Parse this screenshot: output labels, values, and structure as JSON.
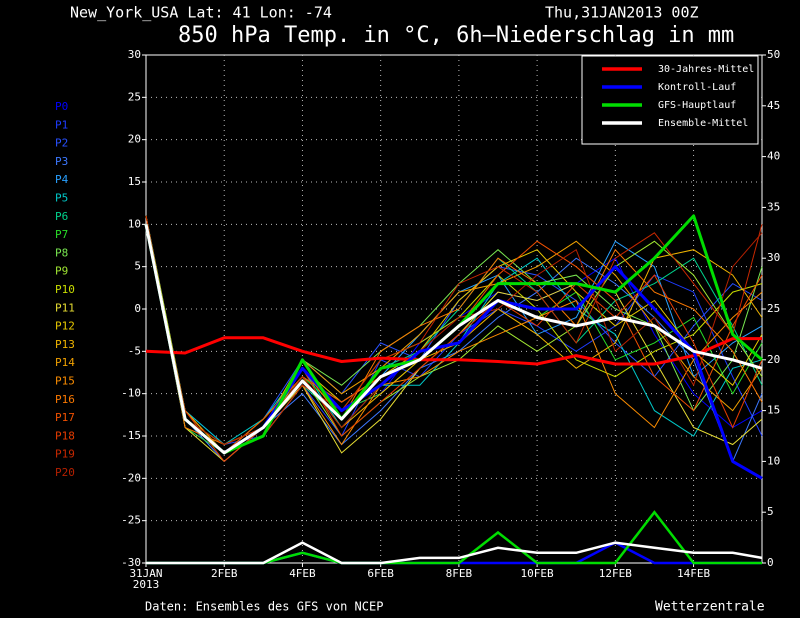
{
  "chart_data": {
    "type": "line",
    "header_left": "New_York_USA  Lat: 41 Lon: -74",
    "header_right": "Thu,31JAN2013 00Z",
    "title": "850 hPa Temp. in °C, 6h–Niederschlag in mm",
    "footer_left": "Daten: Ensembles des GFS von NCEP",
    "footer_right": "Wetterzentrale",
    "x": [
      0,
      1,
      2,
      3,
      4,
      5,
      6,
      7,
      8,
      9,
      10,
      11,
      12,
      13,
      14,
      15,
      15.75
    ],
    "xlim": [
      0,
      15.75
    ],
    "xticks": [
      {
        "value": 0,
        "label": "31JAN"
      },
      {
        "value": 2,
        "label": "2FEB"
      },
      {
        "value": 4,
        "label": "4FEB"
      },
      {
        "value": 6,
        "label": "6FEB"
      },
      {
        "value": 8,
        "label": "8FEB"
      },
      {
        "value": 10,
        "label": "10FEB"
      },
      {
        "value": 12,
        "label": "12FEB"
      },
      {
        "value": 14,
        "label": "14FEB"
      }
    ],
    "x_year_label": "2013",
    "ylim": [
      -30,
      30
    ],
    "yticks": [
      -30,
      -25,
      -20,
      -15,
      -10,
      -5,
      0,
      5,
      10,
      15,
      20,
      25,
      30
    ],
    "y2lim": [
      0,
      50
    ],
    "y2ticks": [
      0,
      5,
      10,
      15,
      20,
      25,
      30,
      35,
      40,
      45,
      50
    ],
    "grid": true,
    "legend": "upper right",
    "series": [
      {
        "name": "30-Jahres-Mittel",
        "color": "#ff0000",
        "values": [
          -5,
          -5.2,
          -3.4,
          -3.4,
          -5,
          -6.2,
          -5.8,
          -6,
          -6,
          -6.2,
          -6.5,
          -5.5,
          -6.5,
          -6.5,
          -5.5,
          -3.5,
          -3.5
        ]
      },
      {
        "name": "Kontroll-Lauf",
        "color": "#0000ff",
        "values": [
          10,
          -13,
          -17,
          -14,
          -7,
          -12,
          -9,
          -5,
          -4,
          1,
          0,
          0,
          5,
          0,
          -5,
          -18,
          -20
        ],
        "precip": [
          0,
          0,
          0,
          0,
          1,
          0,
          0,
          0,
          0,
          0,
          0,
          0,
          2,
          0,
          0,
          0,
          0
        ],
        "axis_precip": "y2"
      },
      {
        "name": "GFS-Hauptlauf",
        "color": "#00dd00",
        "values": [
          10,
          -13,
          -17,
          -15,
          -6,
          -13,
          -7,
          -6,
          -2,
          3,
          3,
          3,
          2,
          6,
          11,
          -3,
          -6
        ],
        "precip": [
          0,
          0,
          0,
          0,
          1,
          0,
          0,
          0,
          0,
          3,
          0,
          0,
          0,
          5,
          0,
          0,
          0
        ],
        "axis_precip": "y2"
      },
      {
        "name": "Ensemble-Mittel",
        "color": "#ffffff",
        "values": [
          10,
          -13,
          -17,
          -14,
          -8.5,
          -13,
          -8,
          -6,
          -2,
          1,
          -1,
          -2,
          -1,
          -2,
          -5,
          -6,
          -7
        ],
        "precip": [
          0,
          0,
          0,
          0,
          2,
          0,
          0,
          0.5,
          0.5,
          1.5,
          1,
          1,
          2,
          1.5,
          1,
          1,
          0.5
        ],
        "axis_precip": "y2"
      }
    ],
    "members": [
      {
        "name": "P0",
        "color": "#0000ff",
        "values": [
          10,
          -13,
          -17,
          -14,
          -7,
          -12,
          -10,
          -4,
          -1,
          2,
          1,
          3,
          6,
          -3,
          -10,
          -14,
          -12
        ]
      },
      {
        "name": "P1",
        "color": "#1e3cff",
        "values": [
          11,
          -12,
          -16,
          -15,
          -9,
          -15,
          -6,
          -8,
          -3,
          0,
          -2,
          -5,
          -2,
          4,
          2,
          -8,
          -15
        ]
      },
      {
        "name": "P2",
        "color": "#2850ff",
        "values": [
          10,
          -14,
          -17,
          -13,
          -6,
          -10,
          -4,
          -6,
          1,
          5,
          4,
          1,
          -4,
          -8,
          -2,
          3,
          1
        ]
      },
      {
        "name": "P3",
        "color": "#3c78ff",
        "values": [
          10,
          -13,
          -18,
          -14,
          -10,
          -16,
          -12,
          -7,
          -5,
          -1,
          2,
          6,
          3,
          -1,
          -6,
          -18,
          -10
        ]
      },
      {
        "name": "P4",
        "color": "#28a0ff",
        "values": [
          11,
          -13,
          -17,
          -14,
          -8,
          -11,
          -8,
          -3,
          2,
          4,
          -3,
          -1,
          8,
          5,
          -8,
          -4,
          -2
        ]
      },
      {
        "name": "P5",
        "color": "#00c8c8",
        "values": [
          10,
          -12,
          -16,
          -13,
          -7,
          -14,
          -9,
          -9,
          -4,
          3,
          6,
          0,
          -3,
          -12,
          -15,
          -7,
          -6
        ]
      },
      {
        "name": "P6",
        "color": "#00d28c",
        "values": [
          10,
          -13,
          -17,
          -15,
          -9,
          -13,
          -7,
          -5,
          0,
          6,
          2,
          -4,
          1,
          3,
          6,
          -2,
          -9
        ]
      },
      {
        "name": "P7",
        "color": "#28dc28",
        "values": [
          11,
          -14,
          -17,
          -14,
          -8,
          -12,
          -10,
          -6,
          -2,
          1,
          -1,
          2,
          -6,
          -4,
          -1,
          -10,
          -4
        ]
      },
      {
        "name": "P8",
        "color": "#78e650",
        "values": [
          10,
          -13,
          -16,
          -14,
          -6,
          -9,
          -5,
          -2,
          3,
          7,
          3,
          4,
          0,
          -2,
          -12,
          -6,
          5
        ]
      },
      {
        "name": "P9",
        "color": "#a0e632",
        "values": [
          10,
          -13,
          -17,
          -13,
          -8,
          -15,
          -11,
          -8,
          -6,
          -2,
          -5,
          -2,
          5,
          8,
          4,
          -3,
          -8
        ]
      },
      {
        "name": "P10",
        "color": "#c8dc00",
        "values": [
          11,
          -12,
          -17,
          -15,
          -7,
          -12,
          -6,
          -4,
          -1,
          4,
          0,
          -6,
          -8,
          -5,
          -3,
          2,
          3
        ]
      },
      {
        "name": "P11",
        "color": "#e6dc32",
        "values": [
          10,
          -14,
          -18,
          -14,
          -9,
          -17,
          -13,
          -7,
          -3,
          2,
          1,
          3,
          2,
          -6,
          -14,
          -16,
          -13
        ]
      },
      {
        "name": "P12",
        "color": "#e6c800",
        "values": [
          10,
          -13,
          -16,
          -14,
          -7,
          -11,
          -8,
          -5,
          1,
          5,
          7,
          2,
          -2,
          1,
          -5,
          -9,
          -3
        ]
      },
      {
        "name": "P13",
        "color": "#f0b400",
        "values": [
          11,
          -13,
          -17,
          -13,
          -8,
          -14,
          -10,
          -6,
          -4,
          0,
          -3,
          -7,
          -4,
          6,
          7,
          4,
          -1
        ]
      },
      {
        "name": "P14",
        "color": "#f0a000",
        "values": [
          10,
          -12,
          -17,
          -14,
          -6,
          -10,
          -7,
          -3,
          2,
          3,
          5,
          8,
          4,
          -2,
          -8,
          -12,
          -7
        ]
      },
      {
        "name": "P15",
        "color": "#fa8c00",
        "values": [
          10,
          -13,
          -17,
          -15,
          -9,
          -16,
          -9,
          -8,
          -5,
          -3,
          -1,
          1,
          -10,
          -14,
          -6,
          -1,
          2
        ]
      },
      {
        "name": "P16",
        "color": "#fa7800",
        "values": [
          11,
          -14,
          -16,
          -14,
          -7,
          -13,
          -5,
          -2,
          0,
          6,
          3,
          -2,
          7,
          2,
          0,
          -5,
          -11
        ]
      },
      {
        "name": "P17",
        "color": "#f05000",
        "values": [
          10,
          -13,
          -17,
          -13,
          -8,
          -11,
          -8,
          -6,
          -2,
          4,
          8,
          5,
          1,
          -8,
          -12,
          -2,
          4
        ]
      },
      {
        "name": "P18",
        "color": "#e63c00",
        "values": [
          10,
          -12,
          -18,
          -14,
          -7,
          -15,
          -11,
          -7,
          -3,
          1,
          -2,
          3,
          -1,
          4,
          -4,
          -14,
          -6
        ]
      },
      {
        "name": "P19",
        "color": "#c82800",
        "values": [
          11,
          -13,
          -17,
          -15,
          -9,
          -12,
          -6,
          -4,
          3,
          5,
          2,
          -4,
          6,
          9,
          3,
          -3,
          10
        ]
      },
      {
        "name": "P20",
        "color": "#b42000",
        "values": [
          10,
          -13,
          -16,
          -14,
          -8,
          -14,
          -9,
          -5,
          -1,
          0,
          4,
          7,
          -5,
          -1,
          -9,
          5,
          9
        ]
      }
    ]
  }
}
